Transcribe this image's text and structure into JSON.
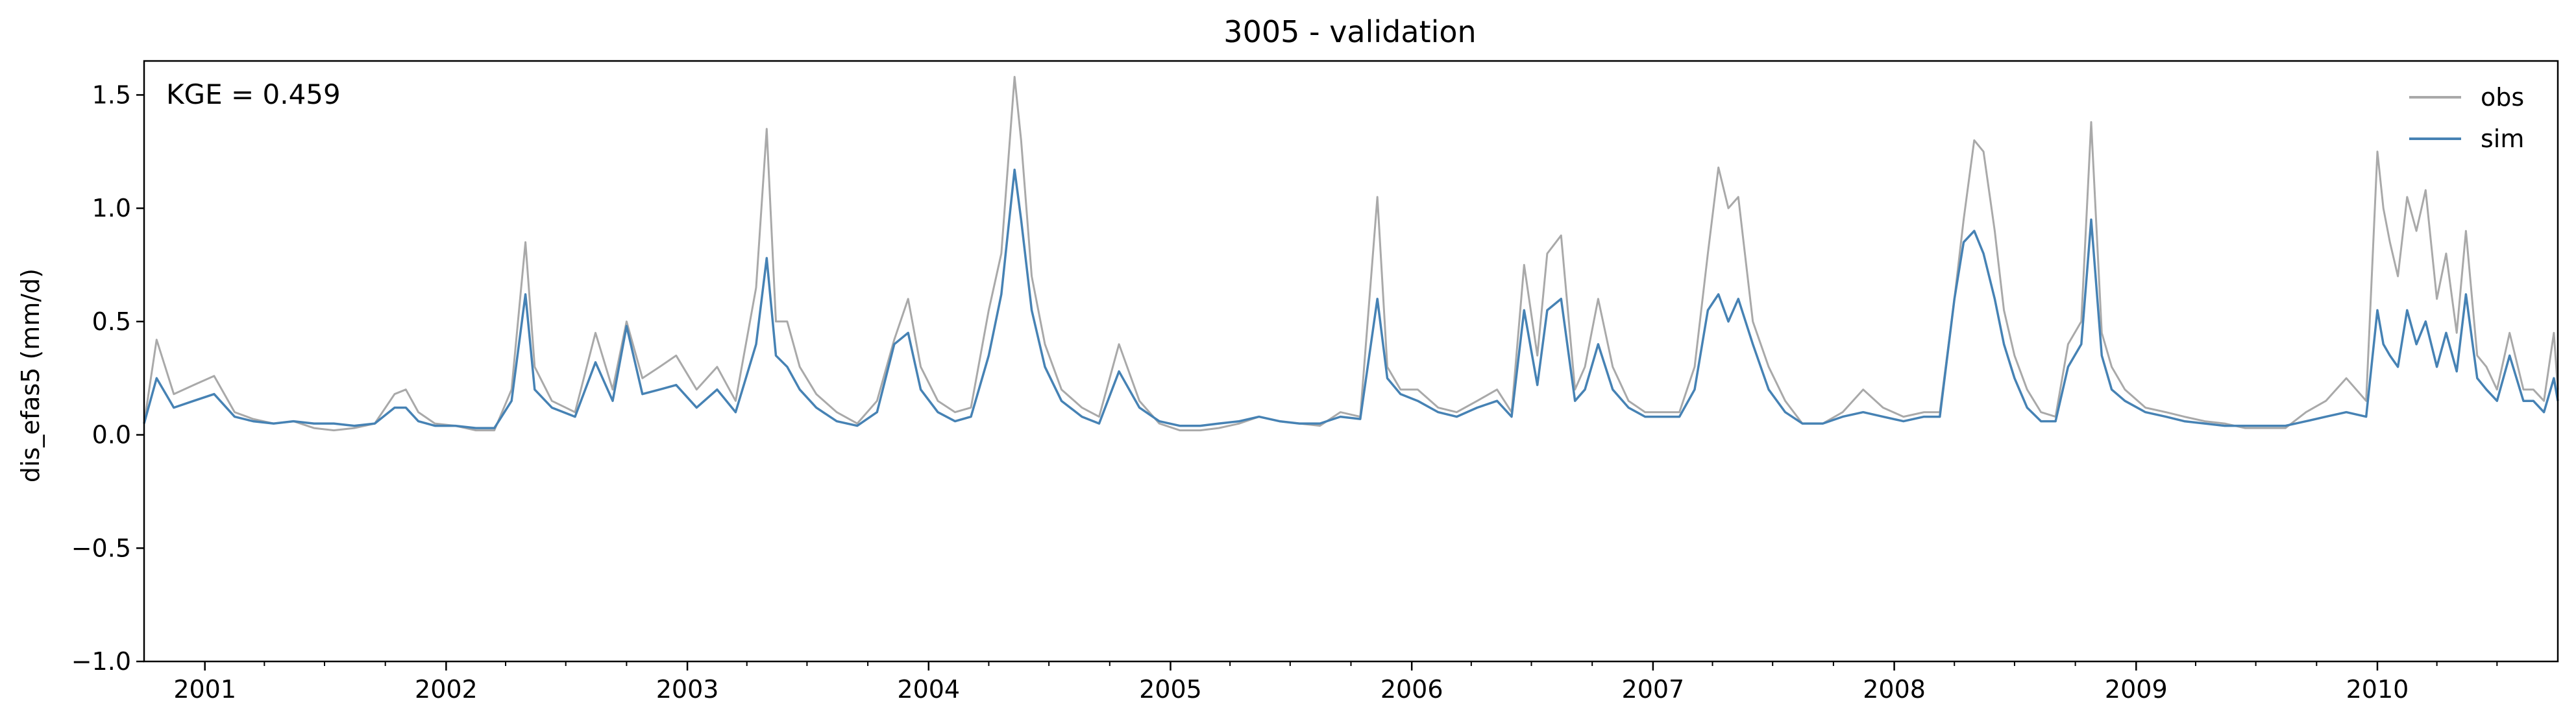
{
  "chart_data": {
    "type": "line",
    "title": "3005 - validation",
    "xlabel": "",
    "ylabel": "dis_efas5 (mm/d)",
    "annotation": "KGE = 0.459",
    "xlim": [
      "2000-10-01",
      "2010-10-01"
    ],
    "ylim": [
      -1.0,
      1.65
    ],
    "yticks": [
      -1.0,
      -0.5,
      0.0,
      0.5,
      1.0,
      1.5
    ],
    "ytick_labels": [
      "−1.0",
      "−0.5",
      "0.0",
      "0.5",
      "1.0",
      "1.5"
    ],
    "xtick_labels": [
      "2001",
      "2002",
      "2003",
      "2004",
      "2005",
      "2006",
      "2007",
      "2008",
      "2009",
      "2010"
    ],
    "grid": false,
    "legend_position": "top-right",
    "x": [
      "2000-10-01",
      "2000-10-20",
      "2000-11-15",
      "2000-12-15",
      "2001-01-15",
      "2001-02-15",
      "2001-03-15",
      "2001-04-15",
      "2001-05-15",
      "2001-06-15",
      "2001-07-15",
      "2001-08-15",
      "2001-09-15",
      "2001-10-15",
      "2001-11-01",
      "2001-11-20",
      "2001-12-15",
      "2002-01-15",
      "2002-02-15",
      "2002-03-15",
      "2002-04-10",
      "2002-05-01",
      "2002-05-15",
      "2002-06-10",
      "2002-07-15",
      "2002-08-15",
      "2002-09-10",
      "2002-10-01",
      "2002-10-25",
      "2002-11-20",
      "2002-12-15",
      "2003-01-15",
      "2003-02-15",
      "2003-03-15",
      "2003-04-15",
      "2003-05-01",
      "2003-05-15",
      "2003-06-01",
      "2003-06-20",
      "2003-07-15",
      "2003-08-15",
      "2003-09-15",
      "2003-10-15",
      "2003-11-10",
      "2003-12-01",
      "2003-12-20",
      "2004-01-15",
      "2004-02-10",
      "2004-03-05",
      "2004-04-01",
      "2004-04-20",
      "2004-05-10",
      "2004-05-20",
      "2004-06-05",
      "2004-06-25",
      "2004-07-20",
      "2004-08-20",
      "2004-09-15",
      "2004-10-15",
      "2004-11-15",
      "2004-12-15",
      "2005-01-15",
      "2005-02-15",
      "2005-03-15",
      "2005-04-15",
      "2005-05-15",
      "2005-06-15",
      "2005-07-15",
      "2005-08-15",
      "2005-09-15",
      "2005-10-15",
      "2005-11-10",
      "2005-11-25",
      "2005-12-15",
      "2006-01-10",
      "2006-02-10",
      "2006-03-10",
      "2006-04-10",
      "2006-05-10",
      "2006-06-01",
      "2006-06-20",
      "2006-07-10",
      "2006-07-25",
      "2006-08-15",
      "2006-09-05",
      "2006-09-20",
      "2006-10-10",
      "2006-11-01",
      "2006-11-25",
      "2006-12-20",
      "2007-01-15",
      "2007-02-10",
      "2007-03-05",
      "2007-03-25",
      "2007-04-10",
      "2007-04-25",
      "2007-05-10",
      "2007-06-01",
      "2007-06-25",
      "2007-07-20",
      "2007-08-15",
      "2007-09-15",
      "2007-10-15",
      "2007-11-15",
      "2007-12-15",
      "2008-01-15",
      "2008-02-15",
      "2008-03-10",
      "2008-04-01",
      "2008-04-15",
      "2008-05-01",
      "2008-05-15",
      "2008-06-01",
      "2008-06-15",
      "2008-07-01",
      "2008-07-20",
      "2008-08-10",
      "2008-09-01",
      "2008-09-20",
      "2008-10-10",
      "2008-10-25",
      "2008-11-10",
      "2008-11-25",
      "2008-12-15",
      "2009-01-15",
      "2009-02-15",
      "2009-03-15",
      "2009-04-15",
      "2009-05-15",
      "2009-06-15",
      "2009-07-15",
      "2009-08-15",
      "2009-09-15",
      "2009-10-15",
      "2009-11-15",
      "2009-12-15",
      "2010-01-01",
      "2010-01-10",
      "2010-01-20",
      "2010-02-01",
      "2010-02-15",
      "2010-03-01",
      "2010-03-15",
      "2010-04-01",
      "2010-04-15",
      "2010-05-01",
      "2010-05-15",
      "2010-06-01",
      "2010-06-15",
      "2010-07-01",
      "2010-07-20",
      "2010-08-10",
      "2010-08-25",
      "2010-09-10",
      "2010-09-25",
      "2010-10-01"
    ],
    "series": [
      {
        "name": "obs",
        "color": "#a9a9a9",
        "values": [
          0.05,
          0.42,
          0.18,
          0.22,
          0.26,
          0.1,
          0.07,
          0.05,
          0.06,
          0.03,
          0.02,
          0.03,
          0.05,
          0.18,
          0.2,
          0.1,
          0.05,
          0.04,
          0.02,
          0.02,
          0.2,
          0.85,
          0.3,
          0.15,
          0.1,
          0.45,
          0.2,
          0.5,
          0.25,
          0.3,
          0.35,
          0.2,
          0.3,
          0.15,
          0.65,
          1.35,
          0.5,
          0.5,
          0.3,
          0.18,
          0.1,
          0.05,
          0.15,
          0.42,
          0.6,
          0.3,
          0.15,
          0.1,
          0.12,
          0.55,
          0.8,
          1.58,
          1.3,
          0.7,
          0.4,
          0.2,
          0.12,
          0.08,
          0.4,
          0.15,
          0.05,
          0.02,
          0.02,
          0.03,
          0.05,
          0.08,
          0.06,
          0.05,
          0.04,
          0.1,
          0.08,
          1.05,
          0.3,
          0.2,
          0.2,
          0.12,
          0.1,
          0.15,
          0.2,
          0.1,
          0.75,
          0.35,
          0.8,
          0.88,
          0.2,
          0.3,
          0.6,
          0.3,
          0.15,
          0.1,
          0.1,
          0.1,
          0.3,
          0.8,
          1.18,
          1.0,
          1.05,
          0.5,
          0.3,
          0.15,
          0.05,
          0.05,
          0.1,
          0.2,
          0.12,
          0.08,
          0.1,
          0.1,
          0.6,
          0.95,
          1.3,
          1.25,
          0.9,
          0.55,
          0.35,
          0.2,
          0.1,
          0.08,
          0.4,
          0.5,
          1.38,
          0.45,
          0.3,
          0.2,
          0.12,
          0.1,
          0.08,
          0.06,
          0.05,
          0.03,
          0.03,
          0.03,
          0.1,
          0.15,
          0.25,
          0.15,
          1.25,
          1.0,
          0.85,
          0.7,
          1.05,
          0.9,
          1.08,
          0.6,
          0.8,
          0.45,
          0.9,
          0.35,
          0.3,
          0.2,
          0.45,
          0.2,
          0.2,
          0.15,
          0.45,
          0.2
        ]
      },
      {
        "name": "sim",
        "color": "#4682b4",
        "values": [
          0.05,
          0.25,
          0.12,
          0.15,
          0.18,
          0.08,
          0.06,
          0.05,
          0.06,
          0.05,
          0.05,
          0.04,
          0.05,
          0.12,
          0.12,
          0.06,
          0.04,
          0.04,
          0.03,
          0.03,
          0.15,
          0.62,
          0.2,
          0.12,
          0.08,
          0.32,
          0.15,
          0.48,
          0.18,
          0.2,
          0.22,
          0.12,
          0.2,
          0.1,
          0.4,
          0.78,
          0.35,
          0.3,
          0.2,
          0.12,
          0.06,
          0.04,
          0.1,
          0.4,
          0.45,
          0.2,
          0.1,
          0.06,
          0.08,
          0.35,
          0.62,
          1.17,
          0.95,
          0.55,
          0.3,
          0.15,
          0.08,
          0.05,
          0.28,
          0.12,
          0.06,
          0.04,
          0.04,
          0.05,
          0.06,
          0.08,
          0.06,
          0.05,
          0.05,
          0.08,
          0.07,
          0.6,
          0.25,
          0.18,
          0.15,
          0.1,
          0.08,
          0.12,
          0.15,
          0.08,
          0.55,
          0.22,
          0.55,
          0.6,
          0.15,
          0.2,
          0.4,
          0.2,
          0.12,
          0.08,
          0.08,
          0.08,
          0.2,
          0.55,
          0.62,
          0.5,
          0.6,
          0.4,
          0.2,
          0.1,
          0.05,
          0.05,
          0.08,
          0.1,
          0.08,
          0.06,
          0.08,
          0.08,
          0.6,
          0.85,
          0.9,
          0.8,
          0.6,
          0.4,
          0.25,
          0.12,
          0.06,
          0.06,
          0.3,
          0.4,
          0.95,
          0.35,
          0.2,
          0.15,
          0.1,
          0.08,
          0.06,
          0.05,
          0.04,
          0.04,
          0.04,
          0.04,
          0.06,
          0.08,
          0.1,
          0.08,
          0.55,
          0.4,
          0.35,
          0.3,
          0.55,
          0.4,
          0.5,
          0.3,
          0.45,
          0.28,
          0.62,
          0.25,
          0.2,
          0.15,
          0.35,
          0.15,
          0.15,
          0.1,
          0.25,
          0.15
        ]
      }
    ]
  }
}
